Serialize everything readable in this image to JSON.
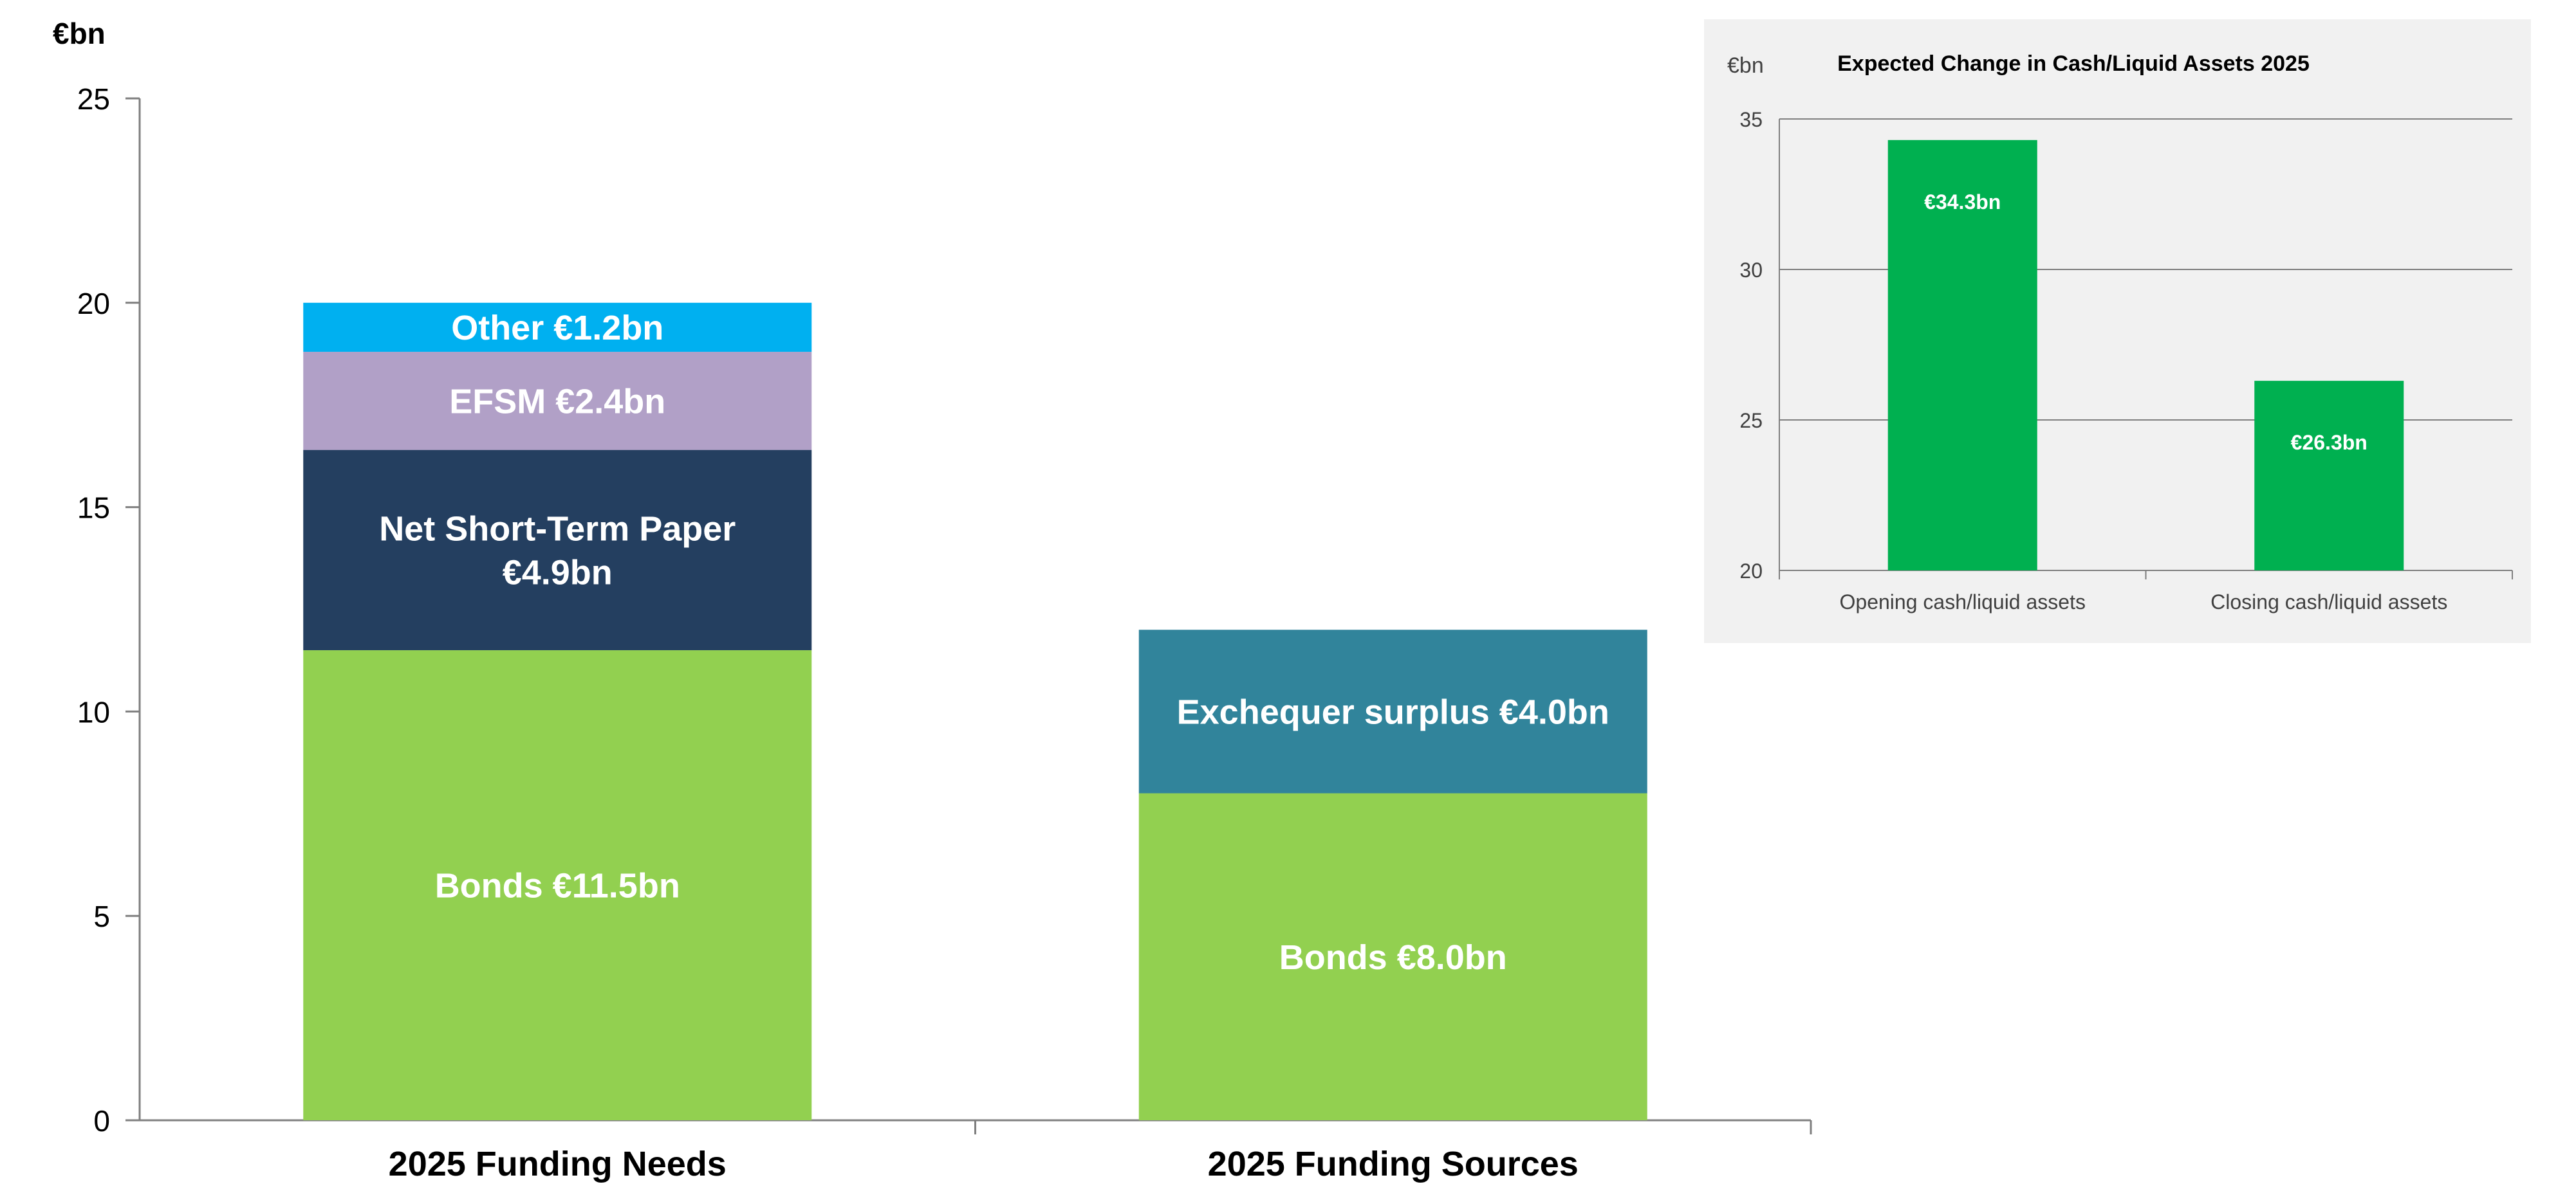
{
  "chart_data": [
    {
      "type": "bar",
      "stacked": true,
      "ylabel": "€bn",
      "ylim": [
        0,
        25
      ],
      "yticks": [
        "0",
        "5",
        "10",
        "15",
        "20",
        "25"
      ],
      "categories": [
        "2025 Funding Needs",
        "2025 Funding Sources"
      ],
      "series": [
        {
          "name": "Bonds",
          "values": [
            11.5,
            8.0
          ],
          "labels": [
            "Bonds  €11.5bn",
            "Bonds  €8.0bn"
          ],
          "color": "#92d050"
        },
        {
          "name": "Net Short-Term Paper",
          "values": [
            4.9,
            null
          ],
          "labels": [
            "Net Short-Term Paper\n€4.9bn",
            ""
          ],
          "color": "#243f60"
        },
        {
          "name": "EFSM",
          "values": [
            2.4,
            null
          ],
          "labels": [
            "EFSM €2.4bn",
            ""
          ],
          "color": "#b1a0c7"
        },
        {
          "name": "Other",
          "values": [
            1.2,
            null
          ],
          "labels": [
            "Other €1.2bn",
            ""
          ],
          "color": "#00b0f0"
        },
        {
          "name": "Exchequer surplus",
          "values": [
            null,
            4.0
          ],
          "labels": [
            "",
            "Exchequer surplus €4.0bn"
          ],
          "color": "#31849b"
        }
      ],
      "grid": false
    },
    {
      "type": "bar",
      "title": "Expected Change in Cash/Liquid Assets 2025",
      "ylabel": "€bn",
      "ylim": [
        20,
        35
      ],
      "yticks": [
        "20",
        "25",
        "30",
        "35"
      ],
      "categories": [
        "Opening cash/liquid assets",
        "Closing cash/liquid assets"
      ],
      "values": [
        34.3,
        26.3
      ],
      "value_labels": [
        "€34.3bn",
        "€26.3bn"
      ],
      "color": "#00b050",
      "grid": true
    }
  ]
}
